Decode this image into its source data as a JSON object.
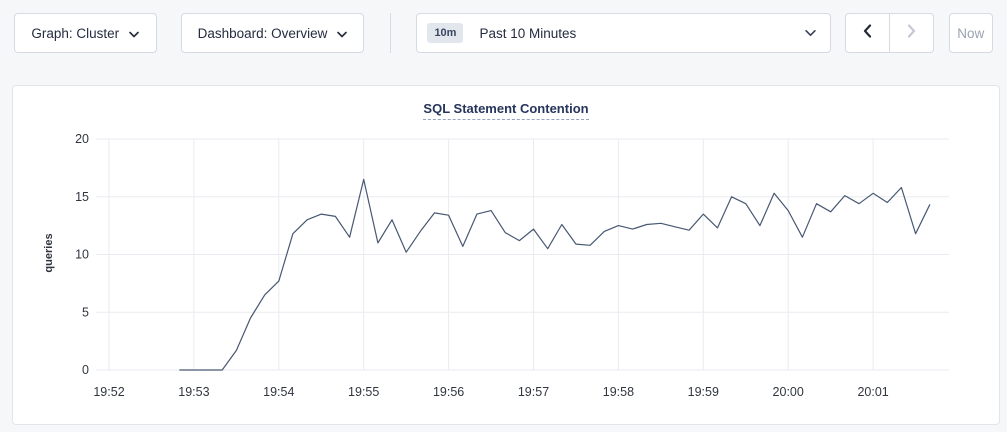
{
  "toolbar": {
    "graph_dropdown_label": "Graph: Cluster",
    "dashboard_dropdown_label": "Dashboard: Overview",
    "time_range": {
      "badge": "10m",
      "label": "Past 10 Minutes"
    },
    "now_button_label": "Now"
  },
  "chart_data": {
    "type": "line",
    "title": "SQL Statement Contention",
    "ylabel": "queries",
    "ylim": [
      0,
      20
    ],
    "y_ticks": [
      0,
      5,
      10,
      15,
      20
    ],
    "x_ticks": [
      "19:52",
      "19:53",
      "19:54",
      "19:55",
      "19:56",
      "19:57",
      "19:58",
      "19:59",
      "20:00",
      "20:01"
    ],
    "grid": true,
    "legend": "none",
    "line_color": "#475872",
    "grid_color": "#e9ebf0",
    "tick_color": "#30363f",
    "series": [
      {
        "name": "SQL Statement Contention",
        "unit": "queries",
        "points": [
          [
            "19:52:50",
            0
          ],
          [
            "19:53:00",
            0
          ],
          [
            "19:53:10",
            0
          ],
          [
            "19:53:20",
            0
          ],
          [
            "19:53:30",
            1.7
          ],
          [
            "19:53:40",
            4.5
          ],
          [
            "19:53:50",
            6.5
          ],
          [
            "19:54:00",
            7.7
          ],
          [
            "19:54:10",
            11.8
          ],
          [
            "19:54:20",
            13.0
          ],
          [
            "19:54:30",
            13.5
          ],
          [
            "19:54:40",
            13.3
          ],
          [
            "19:54:50",
            11.5
          ],
          [
            "19:55:00",
            16.5
          ],
          [
            "19:55:10",
            11.0
          ],
          [
            "19:55:20",
            13.0
          ],
          [
            "19:55:30",
            10.2
          ],
          [
            "19:55:40",
            12.0
          ],
          [
            "19:55:50",
            13.6
          ],
          [
            "19:56:00",
            13.4
          ],
          [
            "19:56:10",
            10.7
          ],
          [
            "19:56:20",
            13.5
          ],
          [
            "19:56:30",
            13.8
          ],
          [
            "19:56:40",
            11.9
          ],
          [
            "19:56:50",
            11.2
          ],
          [
            "19:57:00",
            12.2
          ],
          [
            "19:57:10",
            10.5
          ],
          [
            "19:57:20",
            12.6
          ],
          [
            "19:57:30",
            10.9
          ],
          [
            "19:57:40",
            10.8
          ],
          [
            "19:57:50",
            12.0
          ],
          [
            "19:58:00",
            12.5
          ],
          [
            "19:58:10",
            12.2
          ],
          [
            "19:58:20",
            12.6
          ],
          [
            "19:58:30",
            12.7
          ],
          [
            "19:58:40",
            12.4
          ],
          [
            "19:58:50",
            12.1
          ],
          [
            "19:59:00",
            13.5
          ],
          [
            "19:59:10",
            12.3
          ],
          [
            "19:59:20",
            15.0
          ],
          [
            "19:59:30",
            14.4
          ],
          [
            "19:59:40",
            12.5
          ],
          [
            "19:59:50",
            15.3
          ],
          [
            "20:00:00",
            13.8
          ],
          [
            "20:00:10",
            11.5
          ],
          [
            "20:00:20",
            14.4
          ],
          [
            "20:00:30",
            13.7
          ],
          [
            "20:00:40",
            15.1
          ],
          [
            "20:00:50",
            14.4
          ],
          [
            "20:01:00",
            15.3
          ],
          [
            "20:01:10",
            14.5
          ],
          [
            "20:01:20",
            15.8
          ],
          [
            "20:01:30",
            11.8
          ],
          [
            "20:01:40",
            14.3
          ]
        ]
      }
    ]
  }
}
